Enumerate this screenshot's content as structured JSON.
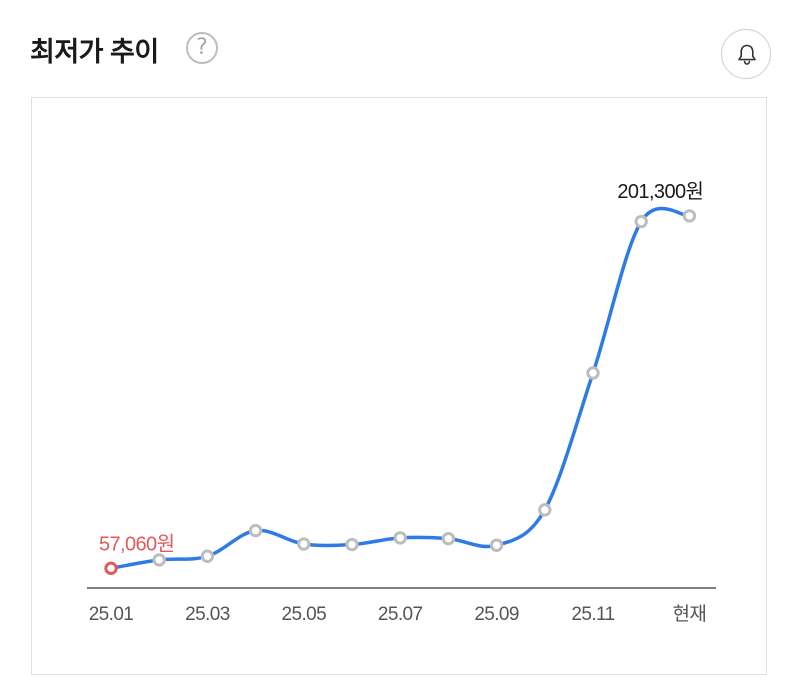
{
  "header": {
    "title": "최저가 추이",
    "help_glyph": "?"
  },
  "icons": {
    "help": "question-circle-icon",
    "alert": "bell-icon"
  },
  "colors": {
    "line": "#2f7be5",
    "min_point": "#e05a5a",
    "point": "#bdbdbd",
    "axis": "#555555",
    "tick_text": "#555555"
  },
  "chart_data": {
    "type": "line",
    "categories": [
      "25.01",
      "25.02",
      "25.03",
      "25.04",
      "25.05",
      "25.06",
      "25.07",
      "25.08",
      "25.09",
      "25.10",
      "25.11",
      "25.12",
      "현재"
    ],
    "tick_labels": [
      "25.01",
      "25.03",
      "25.05",
      "25.07",
      "25.09",
      "25.11",
      "현재"
    ],
    "series": [
      {
        "values": [
          57060,
          60500,
          62000,
          72500,
          67000,
          66800,
          69500,
          69200,
          66500,
          81000,
          137000,
          199000,
          201300
        ]
      }
    ],
    "annotations": [
      {
        "index": 0,
        "text": "57,060원",
        "kind": "min"
      },
      {
        "index": 12,
        "text": "201,300원",
        "kind": "max"
      }
    ],
    "ylim": [
      40000,
      225000
    ],
    "grid": false,
    "legend": "none"
  }
}
